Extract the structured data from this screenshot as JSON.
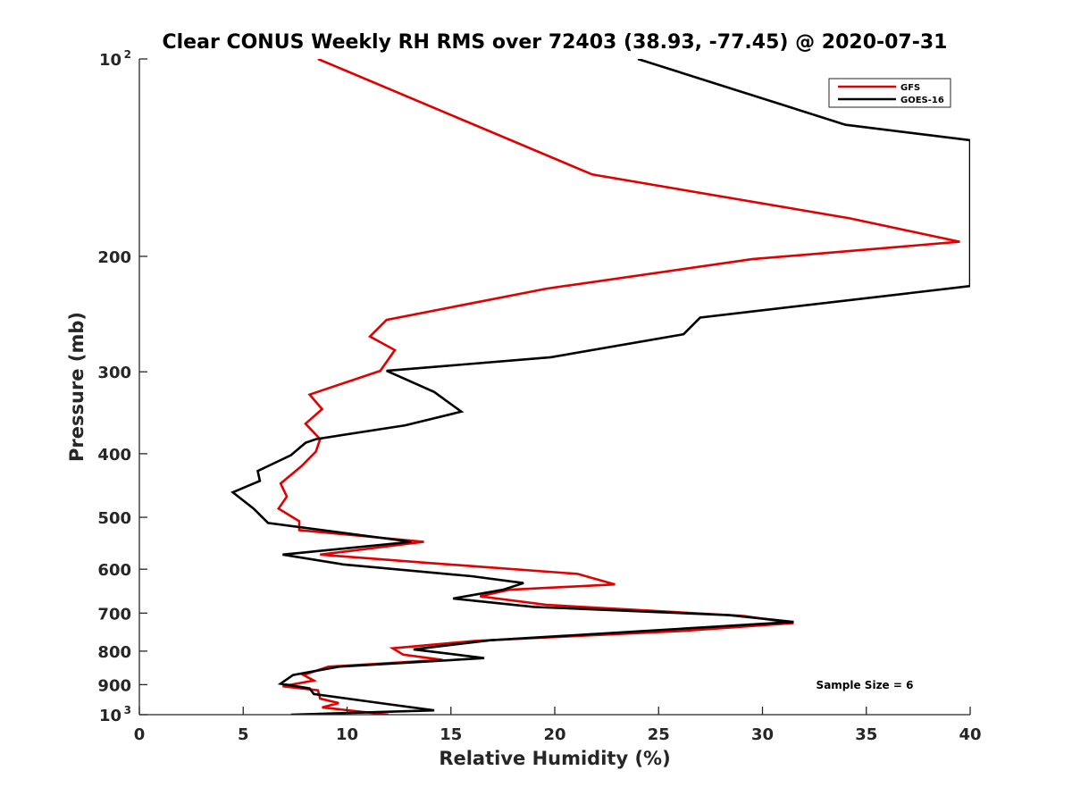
{
  "chart_data": {
    "type": "line",
    "title": "Clear CONUS Weekly RH RMS over 72403 (38.93, -77.45) @ 2020-07-31",
    "xlabel": "Relative Humidity (%)",
    "ylabel": "Pressure (mb)",
    "xlim": [
      0,
      40
    ],
    "ylim": [
      100,
      1000
    ],
    "y_scale": "log",
    "y_reversed": true,
    "grid": false,
    "legend_position": "top-right",
    "x_ticks": [
      0,
      5,
      10,
      15,
      20,
      25,
      30,
      35,
      40
    ],
    "y_ticks": [
      {
        "value": 100,
        "label": "10",
        "exp": "2"
      },
      {
        "value": 200,
        "label": "200",
        "exp": ""
      },
      {
        "value": 300,
        "label": "300",
        "exp": ""
      },
      {
        "value": 400,
        "label": "400",
        "exp": ""
      },
      {
        "value": 500,
        "label": "500",
        "exp": ""
      },
      {
        "value": 600,
        "label": "600",
        "exp": ""
      },
      {
        "value": 700,
        "label": "700",
        "exp": ""
      },
      {
        "value": 800,
        "label": "800",
        "exp": ""
      },
      {
        "value": 900,
        "label": "900",
        "exp": ""
      },
      {
        "value": 1000,
        "label": "10",
        "exp": "3"
      }
    ],
    "annotation": "Sample Size = 6",
    "series": [
      {
        "name": "GFS",
        "color": "#e00000",
        "points": [
          [
            8.6,
            100
          ],
          [
            21.8,
            150
          ],
          [
            34.2,
            175
          ],
          [
            39.5,
            190
          ],
          [
            29.5,
            202
          ],
          [
            19.6,
            224
          ],
          [
            11.9,
            250
          ],
          [
            11.1,
            265
          ],
          [
            12.3,
            278
          ],
          [
            11.6,
            299
          ],
          [
            8.2,
            325
          ],
          [
            8.8,
            342
          ],
          [
            8.0,
            360
          ],
          [
            8.7,
            380
          ],
          [
            8.5,
            397
          ],
          [
            7.8,
            418
          ],
          [
            6.8,
            444
          ],
          [
            7.1,
            465
          ],
          [
            6.7,
            485
          ],
          [
            7.7,
            507
          ],
          [
            7.7,
            523
          ],
          [
            13.7,
            545
          ],
          [
            8.7,
            570
          ],
          [
            13.3,
            585
          ],
          [
            21.1,
            610
          ],
          [
            22.9,
            633
          ],
          [
            17.8,
            645
          ],
          [
            16.4,
            660
          ],
          [
            19.6,
            680
          ],
          [
            29.1,
            707
          ],
          [
            31.5,
            725
          ],
          [
            26.2,
            745
          ],
          [
            16.1,
            772
          ],
          [
            12.2,
            792
          ],
          [
            12.7,
            810
          ],
          [
            14.6,
            825
          ],
          [
            9.1,
            845
          ],
          [
            7.9,
            870
          ],
          [
            8.4,
            887
          ],
          [
            6.9,
            905
          ],
          [
            8.6,
            918
          ],
          [
            8.7,
            945
          ],
          [
            9.6,
            960
          ],
          [
            8.8,
            975
          ],
          [
            12.0,
            1000
          ]
        ]
      },
      {
        "name": "GOES-16",
        "color": "#000000",
        "points": [
          [
            24.0,
            100
          ],
          [
            34.0,
            126
          ],
          [
            40.0,
            133
          ],
          [
            40.0,
            222
          ],
          [
            27.0,
            248
          ],
          [
            26.2,
            263
          ],
          [
            19.8,
            285
          ],
          [
            11.9,
            299
          ],
          [
            14.2,
            322
          ],
          [
            15.5,
            345
          ],
          [
            12.8,
            362
          ],
          [
            8.5,
            380
          ],
          [
            8.0,
            385
          ],
          [
            7.3,
            402
          ],
          [
            5.7,
            425
          ],
          [
            5.8,
            440
          ],
          [
            4.5,
            458
          ],
          [
            5.5,
            485
          ],
          [
            6.2,
            510
          ],
          [
            13.1,
            545
          ],
          [
            6.9,
            570
          ],
          [
            9.8,
            590
          ],
          [
            16.0,
            615
          ],
          [
            18.5,
            630
          ],
          [
            17.5,
            645
          ],
          [
            15.1,
            665
          ],
          [
            19.0,
            685
          ],
          [
            28.4,
            705
          ],
          [
            31.5,
            722
          ],
          [
            16.9,
            770
          ],
          [
            13.2,
            795
          ],
          [
            16.6,
            820
          ],
          [
            9.6,
            845
          ],
          [
            7.4,
            870
          ],
          [
            6.8,
            897
          ],
          [
            8.2,
            912
          ],
          [
            8.4,
            930
          ],
          [
            11.9,
            963
          ],
          [
            14.2,
            985
          ],
          [
            7.3,
            1000
          ]
        ]
      }
    ]
  }
}
